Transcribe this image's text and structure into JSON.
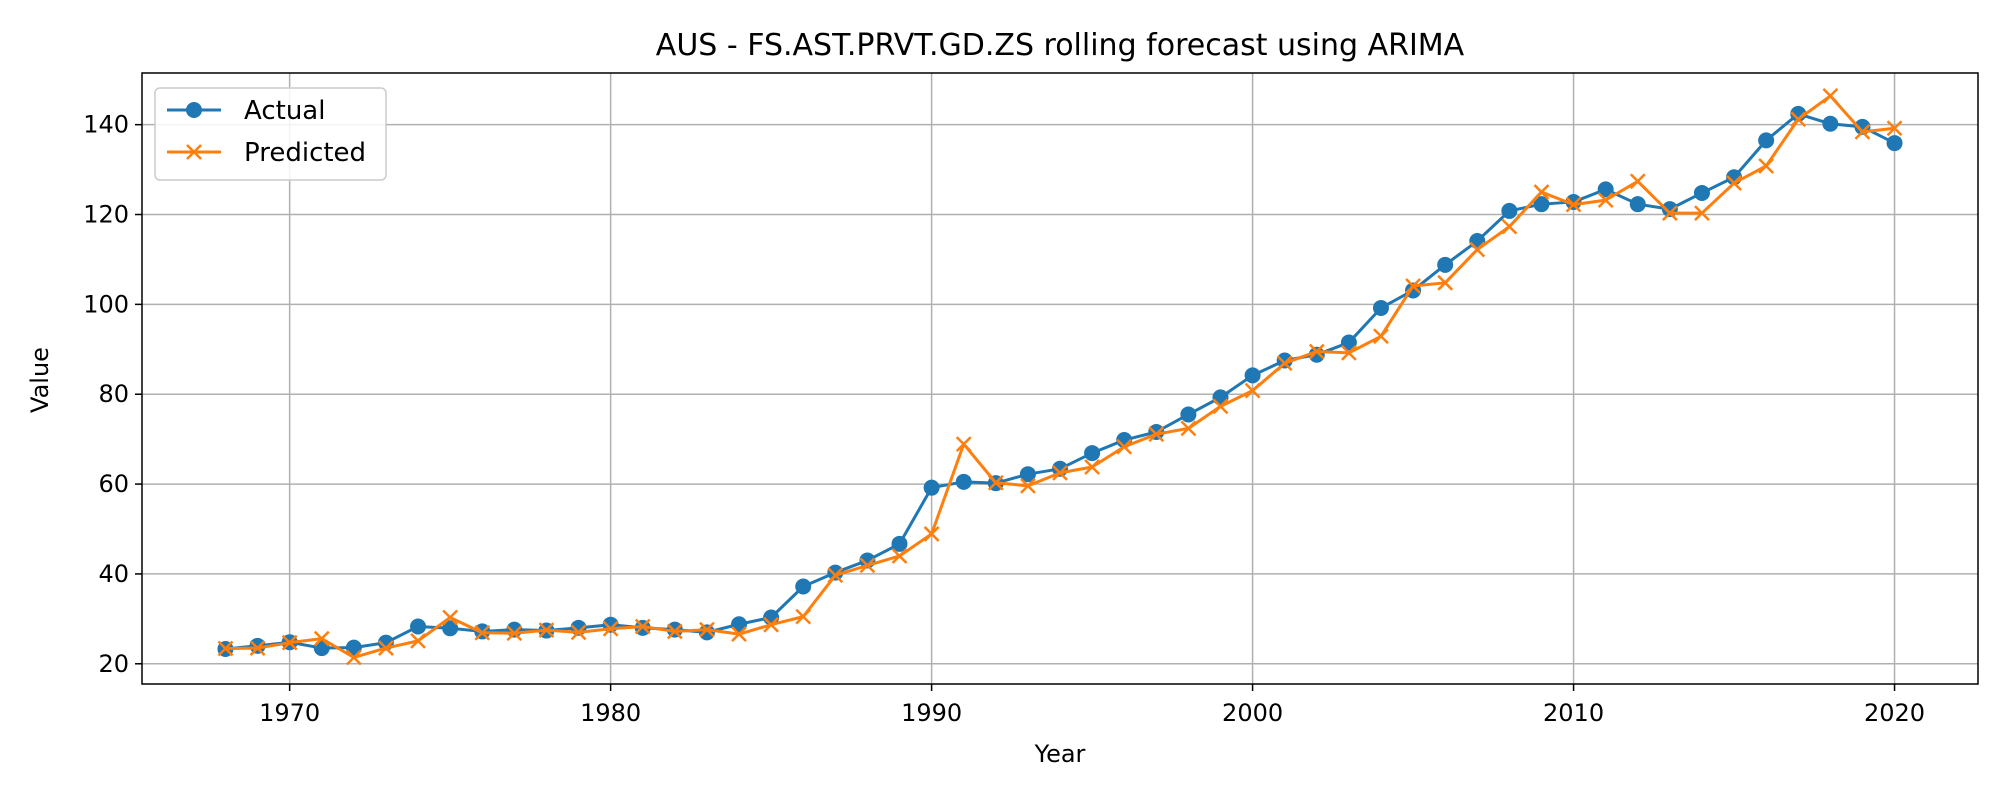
{
  "chart_data": {
    "type": "line",
    "title": "AUS - FS.AST.PRVT.GD.ZS rolling forecast using ARIMA",
    "xlabel": "Year",
    "ylabel": "Value",
    "xlim": [
      1965.4,
      2022.6
    ],
    "ylim": [
      15.5,
      151.5
    ],
    "xticks": [
      1970,
      1980,
      1990,
      2000,
      2010,
      2020
    ],
    "yticks": [
      20,
      40,
      60,
      80,
      100,
      120,
      140
    ],
    "grid": true,
    "legend_position": "upper-left",
    "x": [
      1968,
      1969,
      1970,
      1971,
      1972,
      1973,
      1974,
      1975,
      1976,
      1977,
      1978,
      1979,
      1980,
      1981,
      1982,
      1983,
      1984,
      1985,
      1986,
      1987,
      1988,
      1989,
      1990,
      1991,
      1992,
      1993,
      1994,
      1995,
      1996,
      1997,
      1998,
      1999,
      2000,
      2001,
      2002,
      2003,
      2004,
      2005,
      2006,
      2007,
      2008,
      2009,
      2010,
      2011,
      2012,
      2013,
      2014,
      2015,
      2016,
      2017,
      2018,
      2019,
      2020
    ],
    "series": [
      {
        "name": "Actual",
        "color": "#1f77b4",
        "marker": "circle",
        "values": [
          23.3,
          24.0,
          24.8,
          23.5,
          23.6,
          24.7,
          28.3,
          27.9,
          27.2,
          27.6,
          27.4,
          28.0,
          28.7,
          28.0,
          27.6,
          27.0,
          28.8,
          30.3,
          37.2,
          40.3,
          43.0,
          46.7,
          59.2,
          60.5,
          60.2,
          62.2,
          63.4,
          66.9,
          69.8,
          71.6,
          75.5,
          79.3,
          84.2,
          87.5,
          88.8,
          91.5,
          99.2,
          103.1,
          108.8,
          114.1,
          120.8,
          122.3,
          122.8,
          125.6,
          122.3,
          121.2,
          124.8,
          128.3,
          136.5,
          142.4,
          140.2,
          139.5,
          135.9
        ]
      },
      {
        "name": "Predicted",
        "color": "#ff7f0e",
        "marker": "x",
        "values": [
          23.4,
          23.5,
          24.7,
          25.6,
          21.4,
          23.5,
          25.1,
          30.3,
          26.9,
          26.8,
          27.5,
          27.0,
          27.8,
          28.3,
          27.2,
          27.6,
          26.6,
          28.7,
          30.5,
          39.7,
          41.9,
          44.0,
          48.9,
          68.9,
          60.3,
          59.6,
          62.5,
          63.8,
          68.3,
          71.1,
          72.4,
          77.3,
          80.8,
          86.9,
          89.5,
          89.2,
          92.9,
          104.1,
          104.8,
          112.2,
          117.3,
          125.0,
          122.2,
          123.2,
          127.4,
          120.3,
          120.3,
          127.0,
          130.8,
          141.2,
          146.4,
          138.4,
          139.2
        ]
      }
    ]
  }
}
